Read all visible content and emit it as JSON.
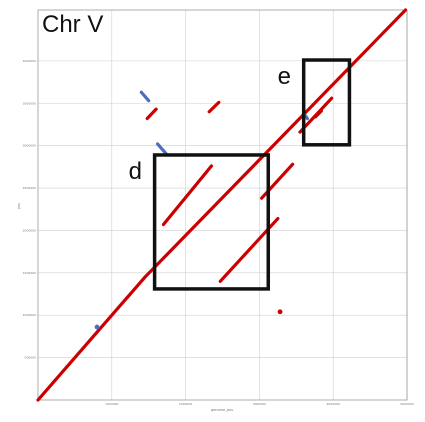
{
  "chart_data": {
    "type": "scatter",
    "title": "Chr V",
    "xlabel": "genome_pos",
    "ylabel": "pos",
    "x_tick_labels": [
      "",
      "1000000",
      "2000000",
      "3000000",
      "4000000",
      "5000000"
    ],
    "y_tick_labels": [
      "",
      "500000",
      "1000000",
      "1500000",
      "2000000",
      "2500000",
      "3000000",
      "3500000",
      "4000000"
    ],
    "xlim": [
      0,
      5000000
    ],
    "ylim": [
      0,
      4600000
    ],
    "grid": true,
    "colors": {
      "forward": "#cc0000",
      "reverse": "#4a6fbf",
      "box": "#111111",
      "grid": "#cfcfcf",
      "frame": "#999999"
    },
    "series": [
      {
        "color": "forward",
        "segments": [
          {
            "x": [
              0,
              1450000
            ],
            "y": [
              0,
              1450000
            ]
          },
          {
            "x": [
              1450000,
              4980000
            ],
            "y": [
              1450000,
              4600000
            ]
          },
          {
            "x": [
              1700000,
              2350000
            ],
            "y": [
              2070000,
              2760000
            ]
          },
          {
            "x": [
              2470000,
              3250000
            ],
            "y": [
              1400000,
              2140000
            ]
          },
          {
            "x": [
              3030000,
              3450000
            ],
            "y": [
              2380000,
              2780000
            ]
          },
          {
            "x": [
              3550000,
              3980000
            ],
            "y": [
              3160000,
              3560000
            ]
          },
          {
            "x": [
              1480000,
              1600000
            ],
            "y": [
              3320000,
              3430000
            ]
          },
          {
            "x": [
              2320000,
              2450000
            ],
            "y": [
              3400000,
              3510000
            ]
          },
          {
            "x": [
              3760000,
              3840000
            ],
            "y": [
              3340000,
              3410000
            ]
          }
        ],
        "points": [
          {
            "x": 3280000,
            "y": 1040000
          }
        ]
      },
      {
        "color": "reverse",
        "segments": [
          {
            "x": [
              1400000,
              1500000
            ],
            "y": [
              3630000,
              3530000
            ]
          },
          {
            "x": [
              1620000,
              1750000
            ],
            "y": [
              3020000,
              2890000
            ]
          },
          {
            "x": [
              3600000,
              3650000
            ],
            "y": [
              3380000,
              3320000
            ]
          }
        ],
        "points": [
          {
            "x": 800000,
            "y": 860000
          }
        ]
      }
    ],
    "boxes": [
      {
        "label": "d",
        "x": [
          1580000,
          3120000
        ],
        "y": [
          1310000,
          2890000
        ]
      },
      {
        "label": "e",
        "x": [
          3600000,
          4220000
        ],
        "y": [
          3010000,
          4010000
        ]
      }
    ]
  }
}
